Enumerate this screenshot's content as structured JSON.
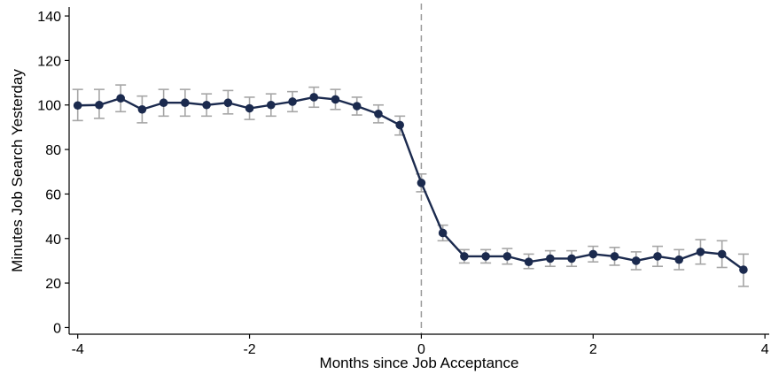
{
  "chart_data": {
    "type": "line",
    "xlabel": "Months since Job Acceptance",
    "ylabel": "Minutes Job Search Yesterday",
    "xlim": [
      -4.1,
      4.05
    ],
    "ylim": [
      -3,
      144
    ],
    "xticks": [
      -4,
      -2,
      0,
      2,
      4
    ],
    "yticks": [
      0,
      20,
      40,
      60,
      80,
      100,
      120,
      140
    ],
    "vline": {
      "x": 0,
      "style": "dashed"
    },
    "grid": false,
    "colors": {
      "line": "#1b2a4e",
      "error_bar": "#a6a6a6",
      "vline": "#999999",
      "axis": "#000000"
    },
    "series": [
      {
        "x": [
          -4,
          -3.75,
          -3.5,
          -3.25,
          -3,
          -2.75,
          -2.5,
          -2.25,
          -2,
          -1.75,
          -1.5,
          -1.25,
          -1,
          -0.75,
          -0.5,
          -0.25,
          0,
          0.25,
          0.5,
          0.75,
          1,
          1.25,
          1.5,
          1.75,
          2,
          2.25,
          2.5,
          2.75,
          3,
          3.25,
          3.5,
          3.75
        ],
        "y": [
          99.8,
          100,
          103,
          98,
          101,
          101,
          100,
          101,
          98.5,
          100,
          101.5,
          103.5,
          102.5,
          99.5,
          96,
          91,
          65,
          42.5,
          32,
          32,
          32,
          29.5,
          31,
          31,
          33,
          32,
          30,
          32,
          30.5,
          34,
          33,
          26
        ],
        "err_low": [
          93,
          94,
          97,
          92,
          95,
          95,
          95,
          96,
          93.5,
          95,
          97,
          99,
          98,
          95.5,
          92,
          86.5,
          61,
          39,
          29,
          29,
          28.5,
          26.5,
          27.5,
          27.5,
          29.5,
          28,
          26,
          27.5,
          26,
          28.5,
          27,
          18.5
        ],
        "err_high": [
          107,
          107,
          109,
          104,
          107,
          107,
          105,
          106.5,
          103.5,
          105,
          106,
          108,
          107,
          103.5,
          100,
          95,
          69,
          46,
          35,
          35,
          35.5,
          33,
          34.5,
          34.5,
          36.5,
          36,
          34,
          36.5,
          35,
          39.5,
          39,
          33
        ]
      }
    ]
  }
}
